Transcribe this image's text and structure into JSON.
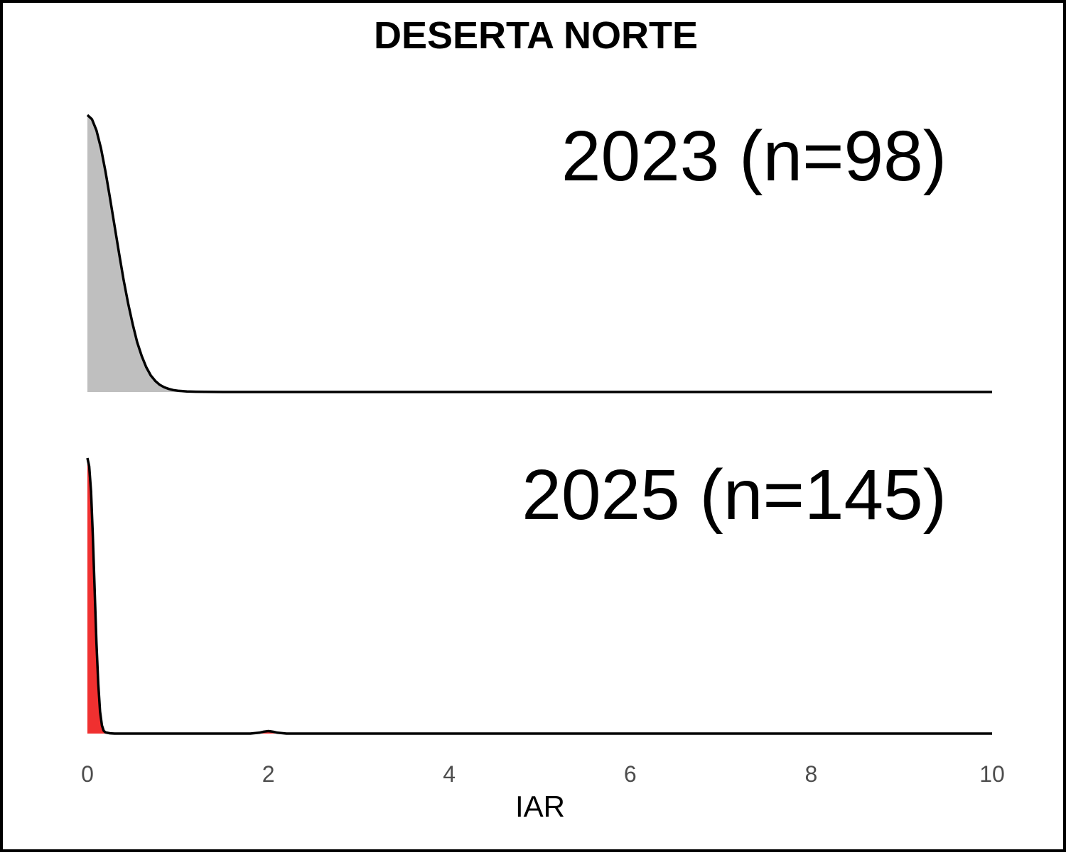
{
  "chart_data": {
    "type": "area",
    "title": "DESERTA NORTE",
    "xlabel": "IAR",
    "ylabel": "",
    "xlim": [
      0,
      10
    ],
    "x_ticks": [
      0,
      2,
      4,
      6,
      8,
      10
    ],
    "x_tick_labels": [
      "0",
      "2",
      "4",
      "6",
      "8",
      "10"
    ],
    "grid": false,
    "legend": "none",
    "series": [
      {
        "label": "2023 (n=98)",
        "fill_color": "#bfbfbf",
        "line_color": "#000000",
        "x": [
          0,
          0.05,
          0.1,
          0.15,
          0.2,
          0.25,
          0.3,
          0.35,
          0.4,
          0.45,
          0.5,
          0.55,
          0.6,
          0.65,
          0.7,
          0.75,
          0.8,
          0.85,
          0.9,
          0.95,
          1.0,
          1.1,
          1.2,
          1.3,
          1.4,
          1.5,
          2.0,
          10
        ],
        "y": [
          1.0,
          0.985,
          0.945,
          0.88,
          0.795,
          0.7,
          0.6,
          0.5,
          0.405,
          0.32,
          0.245,
          0.18,
          0.13,
          0.09,
          0.06,
          0.04,
          0.026,
          0.017,
          0.011,
          0.007,
          0.0045,
          0.002,
          0.001,
          0.0005,
          0.0002,
          0.0001,
          0,
          0
        ]
      },
      {
        "label": "2025 (n=145)",
        "fill_color": "#f03030",
        "line_color": "#000000",
        "x": [
          0,
          0.02,
          0.04,
          0.06,
          0.08,
          0.1,
          0.12,
          0.14,
          0.16,
          0.18,
          0.2,
          0.25,
          0.3,
          1.8,
          1.9,
          1.95,
          2.0,
          2.05,
          2.1,
          2.2,
          10
        ],
        "y": [
          1.0,
          0.97,
          0.88,
          0.72,
          0.52,
          0.33,
          0.18,
          0.08,
          0.03,
          0.01,
          0.004,
          0.001,
          0,
          0,
          0.003,
          0.007,
          0.009,
          0.007,
          0.003,
          0,
          0
        ]
      }
    ]
  }
}
